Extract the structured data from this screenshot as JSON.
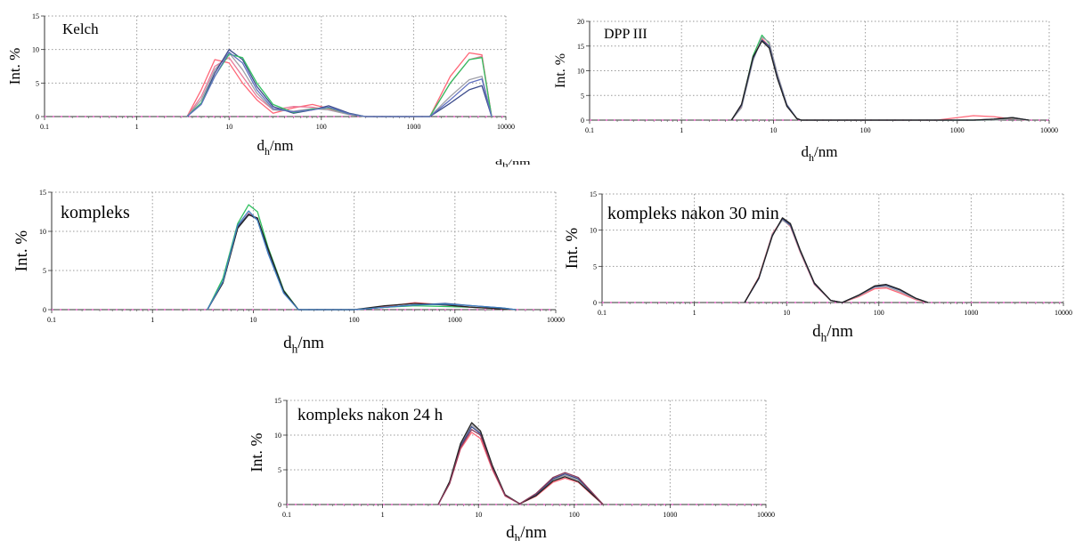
{
  "stray_label": "d_h/nm",
  "chart_data": [
    {
      "type": "line",
      "title": "Kelch",
      "xlabel": "d_h/nm",
      "ylabel": "Int. %",
      "xscale": "log",
      "xlim": [
        0.1,
        10000
      ],
      "ylim": [
        0,
        15
      ],
      "xticks": [
        "0.1",
        "1",
        "10",
        "100",
        "1000",
        "10000"
      ],
      "yticks": [
        "0",
        "5",
        "10",
        "15"
      ],
      "grid": true,
      "colors": [
        "#ff6677",
        "#e87a9a",
        "#a0a0a8",
        "#3a4a8a",
        "#30c060",
        "#6070c0"
      ],
      "series": [
        {
          "x": [
            3.5,
            5,
            7,
            10,
            14,
            20,
            30,
            50,
            80,
            120,
            200,
            300,
            1500,
            2500,
            4000,
            5500,
            7000
          ],
          "y": [
            0,
            4,
            8.5,
            8,
            5,
            2.5,
            0.5,
            1.3,
            1.8,
            1.2,
            0.4,
            0,
            0,
            6,
            9.5,
            9.2,
            0
          ]
        },
        {
          "x": [
            3.5,
            5,
            7,
            10,
            14,
            20,
            30,
            50,
            80,
            120,
            200,
            300,
            1500,
            2500,
            4000,
            5500,
            7000
          ],
          "y": [
            0,
            3,
            7.5,
            8.8,
            6,
            3,
            1,
            1.5,
            1.4,
            1,
            0.3,
            0,
            0,
            5,
            8.5,
            9,
            0
          ]
        },
        {
          "x": [
            3.5,
            5,
            7,
            10,
            14,
            20,
            30,
            50,
            80,
            120,
            200,
            300,
            1500,
            2500,
            4000,
            5500,
            7000
          ],
          "y": [
            0,
            2.5,
            7,
            9.5,
            7,
            3.5,
            1,
            0.8,
            1.2,
            1,
            0.3,
            0,
            0,
            3,
            5.5,
            6,
            0
          ]
        },
        {
          "x": [
            3.5,
            5,
            7,
            10,
            14,
            20,
            30,
            50,
            80,
            120,
            200,
            300,
            1500,
            2500,
            4000,
            5500,
            7000
          ],
          "y": [
            0,
            2,
            6.5,
            10,
            8.5,
            4.5,
            1.5,
            0.5,
            1,
            1.6,
            0.5,
            0,
            0,
            2,
            4,
            4.6,
            0
          ]
        },
        {
          "x": [
            3.5,
            5,
            7,
            10,
            14,
            20,
            30,
            50,
            80,
            120,
            200,
            300,
            1500,
            2500,
            4000,
            5500,
            7000
          ],
          "y": [
            0,
            2,
            6,
            9.3,
            8.8,
            5,
            1.8,
            0.6,
            1.1,
            1.3,
            0.4,
            0,
            0,
            5,
            8.5,
            8.8,
            0
          ]
        },
        {
          "x": [
            3.5,
            5,
            7,
            10,
            14,
            20,
            30,
            50,
            80,
            120,
            200,
            300,
            1500,
            2500,
            4000,
            5500,
            7000
          ],
          "y": [
            0,
            1.8,
            6,
            9.6,
            8,
            4,
            1.2,
            0.7,
            1,
            1.4,
            0.4,
            0,
            0,
            2.5,
            5,
            5.6,
            0
          ]
        }
      ]
    },
    {
      "type": "line",
      "title": "DPP III",
      "xlabel": "d_h/nm",
      "ylabel": "Int. %",
      "xscale": "log",
      "xlim": [
        0.1,
        10000
      ],
      "ylim": [
        0,
        20
      ],
      "xticks": [
        "0.1",
        "1",
        "10",
        "100",
        "1000",
        "10000"
      ],
      "yticks": [
        "0",
        "5",
        "10",
        "15",
        "20"
      ],
      "grid": true,
      "colors": [
        "#30c060",
        "#ff6677",
        "#a0a0a8",
        "#3a4a8a",
        "#222222"
      ],
      "series": [
        {
          "x": [
            3.5,
            4.5,
            6,
            7.5,
            9,
            11,
            14,
            18,
            20,
            600,
            1500,
            2500,
            4000,
            6000
          ],
          "y": [
            0,
            3,
            13,
            17.2,
            15.5,
            9,
            3,
            0.3,
            0,
            0,
            0,
            0,
            0.3,
            0
          ]
        },
        {
          "x": [
            3.5,
            4.5,
            6,
            7.5,
            9,
            11,
            14,
            18,
            20,
            600,
            1500,
            2500,
            4000,
            6000
          ],
          "y": [
            0,
            2.8,
            12.5,
            16.5,
            15,
            9,
            3,
            0.3,
            0,
            0,
            0.9,
            0.7,
            0.2,
            0
          ]
        },
        {
          "x": [
            3.5,
            4.5,
            6,
            7.5,
            9,
            11,
            14,
            18,
            20,
            600,
            1500,
            2500,
            4000,
            6000
          ],
          "y": [
            0,
            2.5,
            12,
            16.8,
            15.8,
            9.5,
            3.2,
            0.3,
            0,
            0,
            0,
            0,
            0.2,
            0
          ]
        },
        {
          "x": [
            3.5,
            4.5,
            6,
            7.5,
            9,
            11,
            14,
            18,
            20,
            600,
            1500,
            2500,
            4000,
            6000
          ],
          "y": [
            0,
            3,
            12.5,
            16.2,
            15,
            8.8,
            3,
            0.3,
            0,
            0,
            0,
            0.2,
            0.5,
            0
          ]
        },
        {
          "x": [
            3.5,
            4.5,
            6,
            7.5,
            9,
            11,
            14,
            18,
            20,
            600,
            1500,
            2500,
            4000,
            6000
          ],
          "y": [
            0,
            3.2,
            12.8,
            16,
            14.6,
            8.5,
            2.8,
            0.3,
            0,
            0,
            0,
            0.2,
            0.5,
            0
          ]
        }
      ]
    },
    {
      "type": "line",
      "title": "kompleks",
      "xlabel": "d_h/nm",
      "ylabel": "Int. %",
      "xscale": "log",
      "xlim": [
        0.1,
        10000
      ],
      "ylim": [
        0,
        15
      ],
      "xticks": [
        "0.1",
        "1",
        "10",
        "100",
        "1000",
        "10000"
      ],
      "yticks": [
        "0",
        "5",
        "10",
        "15"
      ],
      "grid": true,
      "colors": [
        "#30c060",
        "#ff6677",
        "#3a4a8a",
        "#222222",
        "#4080c0"
      ],
      "series": [
        {
          "x": [
            3.5,
            5,
            7,
            9,
            11,
            14,
            20,
            28,
            100,
            200,
            400,
            800,
            1500,
            3000,
            4000
          ],
          "y": [
            0,
            4,
            11,
            13.4,
            12.5,
            8,
            2.5,
            0,
            0,
            0.3,
            0.5,
            0.4,
            0.3,
            0.1,
            0
          ]
        },
        {
          "x": [
            3.5,
            5,
            7,
            9,
            11,
            14,
            20,
            28,
            100,
            200,
            400,
            800,
            1500,
            3000,
            4000
          ],
          "y": [
            0,
            3.5,
            10.5,
            12.3,
            11.6,
            7.5,
            2.2,
            0,
            0,
            0.4,
            0.9,
            0.6,
            0.3,
            0.1,
            0
          ]
        },
        {
          "x": [
            3.5,
            5,
            7,
            9,
            11,
            14,
            20,
            28,
            100,
            200,
            400,
            800,
            1500,
            3000,
            4000
          ],
          "y": [
            0,
            3.6,
            10.6,
            12.2,
            11.5,
            7.6,
            2.3,
            0,
            0,
            0.3,
            0.6,
            0.8,
            0.5,
            0.2,
            0
          ]
        },
        {
          "x": [
            3.5,
            5,
            7,
            9,
            11,
            14,
            20,
            28,
            100,
            200,
            400,
            800,
            1500,
            3000,
            4000
          ],
          "y": [
            0,
            3.4,
            10.4,
            12.1,
            11.7,
            7.8,
            2.4,
            0,
            0,
            0.5,
            0.8,
            0.6,
            0.3,
            0.1,
            0
          ]
        },
        {
          "x": [
            3.5,
            5,
            7,
            9,
            11,
            14,
            20,
            28,
            100,
            200,
            400,
            800,
            1500,
            3000,
            4000
          ],
          "y": [
            0,
            3.6,
            10.8,
            12.6,
            11.4,
            7.2,
            2.1,
            0,
            0,
            0.3,
            0.6,
            0.7,
            0.5,
            0.2,
            0
          ]
        }
      ]
    },
    {
      "type": "line",
      "title": "kompleks nakon 30 min",
      "xlabel": "d_h/nm",
      "ylabel": "Int. %",
      "xscale": "log",
      "xlim": [
        0.1,
        10000
      ],
      "ylim": [
        0,
        15
      ],
      "xticks": [
        "0.1",
        "1",
        "10",
        "100",
        "1000",
        "10000"
      ],
      "yticks": [
        "0",
        "5",
        "10",
        "15"
      ],
      "grid": true,
      "colors": [
        "#ff6677",
        "#a0a0a8",
        "#3a4a8a",
        "#222222"
      ],
      "series": [
        {
          "x": [
            3.5,
            5,
            7,
            9,
            11,
            14,
            20,
            30,
            40,
            60,
            90,
            120,
            170,
            250,
            340
          ],
          "y": [
            0,
            3.5,
            9.5,
            11.5,
            10.5,
            7,
            2.5,
            0.3,
            0,
            0.8,
            1.9,
            2,
            1.3,
            0.4,
            0
          ]
        },
        {
          "x": [
            3.5,
            5,
            7,
            9,
            11,
            14,
            20,
            30,
            40,
            60,
            90,
            120,
            170,
            250,
            340
          ],
          "y": [
            0,
            3.4,
            9.4,
            11.4,
            10.6,
            7.1,
            2.6,
            0.3,
            0,
            0.9,
            2.1,
            2.2,
            1.5,
            0.5,
            0
          ]
        },
        {
          "x": [
            3.5,
            5,
            7,
            9,
            11,
            14,
            20,
            30,
            40,
            60,
            90,
            120,
            170,
            250,
            340
          ],
          "y": [
            0,
            3.3,
            9.3,
            11.6,
            10.7,
            7.2,
            2.6,
            0.3,
            0,
            1,
            2.2,
            2.4,
            1.7,
            0.6,
            0
          ]
        },
        {
          "x": [
            3.5,
            5,
            7,
            9,
            11,
            14,
            20,
            30,
            40,
            60,
            90,
            120,
            170,
            250,
            340
          ],
          "y": [
            0,
            3.4,
            9.2,
            11.7,
            10.9,
            7.3,
            2.7,
            0.3,
            0,
            1,
            2.3,
            2.5,
            1.8,
            0.6,
            0
          ]
        }
      ]
    },
    {
      "type": "line",
      "title": "kompleks nakon 24 h",
      "xlabel": "d_h/nm",
      "ylabel": "Int. %",
      "xscale": "log",
      "xlim": [
        0.1,
        10000
      ],
      "ylim": [
        0,
        15
      ],
      "xticks": [
        "0.1",
        "1",
        "10",
        "100",
        "1000",
        "10000"
      ],
      "yticks": [
        "0",
        "5",
        "10",
        "15"
      ],
      "grid": true,
      "colors": [
        "#ff6677",
        "#a0a0a8",
        "#3a4a8a",
        "#222222",
        "#8a3a5a"
      ],
      "series": [
        {
          "x": [
            3.8,
            5,
            6.5,
            8.5,
            10.5,
            14,
            19,
            27,
            40,
            60,
            80,
            110,
            150,
            200
          ],
          "y": [
            0,
            3,
            8,
            10.4,
            9.5,
            5,
            1.2,
            0.1,
            1.2,
            3.2,
            3.8,
            3.2,
            1.5,
            0
          ]
        },
        {
          "x": [
            3.8,
            5,
            6.5,
            8.5,
            10.5,
            14,
            19,
            27,
            40,
            60,
            80,
            110,
            150,
            200
          ],
          "y": [
            0,
            3.2,
            8.6,
            11.5,
            10.4,
            5.5,
            1.4,
            0.1,
            1.4,
            3.6,
            4.2,
            3.5,
            1.7,
            0
          ]
        },
        {
          "x": [
            3.8,
            5,
            6.5,
            8.5,
            10.5,
            14,
            19,
            27,
            40,
            60,
            80,
            110,
            150,
            200
          ],
          "y": [
            0,
            3.1,
            8.4,
            11.2,
            10.2,
            5.3,
            1.3,
            0.1,
            1.5,
            3.7,
            4.4,
            3.7,
            1.8,
            0
          ]
        },
        {
          "x": [
            3.8,
            5,
            6.5,
            8.5,
            10.5,
            14,
            19,
            27,
            40,
            60,
            80,
            110,
            150,
            200
          ],
          "y": [
            0,
            3.3,
            8.8,
            11.8,
            10.6,
            5.6,
            1.4,
            0.1,
            1.3,
            3.4,
            4,
            3.3,
            1.6,
            0
          ]
        },
        {
          "x": [
            3.8,
            5,
            6.5,
            8.5,
            10.5,
            14,
            19,
            27,
            40,
            60,
            80,
            110,
            150,
            200
          ],
          "y": [
            0,
            3,
            8.2,
            10.8,
            10,
            5.2,
            1.3,
            0.1,
            1.6,
            3.9,
            4.6,
            3.9,
            1.9,
            0
          ]
        }
      ]
    }
  ]
}
